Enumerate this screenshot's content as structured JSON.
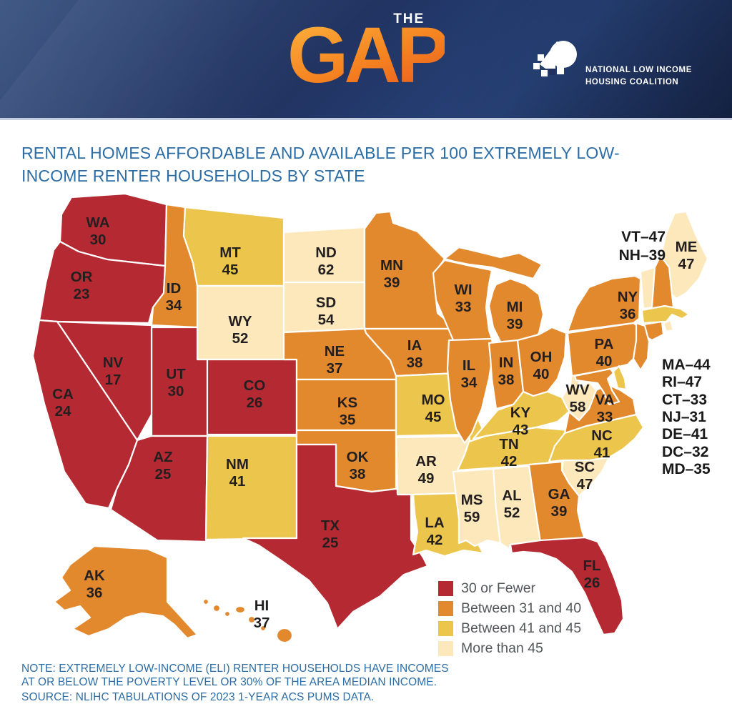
{
  "header": {
    "brand_the": "THE",
    "brand_gap": "GAP",
    "org_line1": "NATIONAL LOW INCOME",
    "org_line2": "HOUSING COALITION"
  },
  "title": "RENTAL HOMES AFFORDABLE AND AVAILABLE PER 100 EXTREMELY LOW-INCOME RENTER HOUSEHOLDS BY STATE",
  "chart_data": {
    "type": "choropleth-map",
    "title": "RENTAL HOMES AFFORDABLE AND AVAILABLE PER 100 EXTREMELY LOW-INCOME RENTER HOUSEHOLDS BY STATE",
    "legend_position": "bottom-center",
    "legend": [
      {
        "label": "30 or Fewer",
        "color": "#b52a32"
      },
      {
        "label": "Between 31 and 40",
        "color": "#e2882d"
      },
      {
        "label": "Between 41 and 45",
        "color": "#ecc54d"
      },
      {
        "label": "More than 45",
        "color": "#fce8ba"
      }
    ],
    "states": [
      {
        "abbr": "WA",
        "value": 30,
        "cat": 0
      },
      {
        "abbr": "OR",
        "value": 23,
        "cat": 0
      },
      {
        "abbr": "CA",
        "value": 24,
        "cat": 0
      },
      {
        "abbr": "NV",
        "value": 17,
        "cat": 0
      },
      {
        "abbr": "ID",
        "value": 34,
        "cat": 1
      },
      {
        "abbr": "UT",
        "value": 30,
        "cat": 0
      },
      {
        "abbr": "AZ",
        "value": 25,
        "cat": 0
      },
      {
        "abbr": "MT",
        "value": 45,
        "cat": 2
      },
      {
        "abbr": "WY",
        "value": 52,
        "cat": 3
      },
      {
        "abbr": "CO",
        "value": 26,
        "cat": 0
      },
      {
        "abbr": "NM",
        "value": 41,
        "cat": 2
      },
      {
        "abbr": "ND",
        "value": 62,
        "cat": 3
      },
      {
        "abbr": "SD",
        "value": 54,
        "cat": 3
      },
      {
        "abbr": "NE",
        "value": 37,
        "cat": 1
      },
      {
        "abbr": "KS",
        "value": 35,
        "cat": 1
      },
      {
        "abbr": "OK",
        "value": 38,
        "cat": 1
      },
      {
        "abbr": "TX",
        "value": 25,
        "cat": 0
      },
      {
        "abbr": "MN",
        "value": 39,
        "cat": 1
      },
      {
        "abbr": "IA",
        "value": 38,
        "cat": 1
      },
      {
        "abbr": "MO",
        "value": 45,
        "cat": 2
      },
      {
        "abbr": "AR",
        "value": 49,
        "cat": 3
      },
      {
        "abbr": "LA",
        "value": 42,
        "cat": 2
      },
      {
        "abbr": "WI",
        "value": 33,
        "cat": 1
      },
      {
        "abbr": "IL",
        "value": 34,
        "cat": 1
      },
      {
        "abbr": "MI",
        "value": 39,
        "cat": 1
      },
      {
        "abbr": "IN",
        "value": 38,
        "cat": 1
      },
      {
        "abbr": "OH",
        "value": 40,
        "cat": 1
      },
      {
        "abbr": "KY",
        "value": 43,
        "cat": 2
      },
      {
        "abbr": "TN",
        "value": 42,
        "cat": 2
      },
      {
        "abbr": "MS",
        "value": 59,
        "cat": 3
      },
      {
        "abbr": "AL",
        "value": 52,
        "cat": 3
      },
      {
        "abbr": "GA",
        "value": 39,
        "cat": 1
      },
      {
        "abbr": "FL",
        "value": 26,
        "cat": 0
      },
      {
        "abbr": "SC",
        "value": 47,
        "cat": 3
      },
      {
        "abbr": "NC",
        "value": 41,
        "cat": 2
      },
      {
        "abbr": "VA",
        "value": 33,
        "cat": 1
      },
      {
        "abbr": "WV",
        "value": 58,
        "cat": 3
      },
      {
        "abbr": "PA",
        "value": 40,
        "cat": 1
      },
      {
        "abbr": "NY",
        "value": 36,
        "cat": 1
      },
      {
        "abbr": "ME",
        "value": 47,
        "cat": 3
      },
      {
        "abbr": "VT",
        "value": 47,
        "cat": 3
      },
      {
        "abbr": "NH",
        "value": 39,
        "cat": 1
      },
      {
        "abbr": "MA",
        "value": 44,
        "cat": 2
      },
      {
        "abbr": "RI",
        "value": 47,
        "cat": 3
      },
      {
        "abbr": "CT",
        "value": 33,
        "cat": 1
      },
      {
        "abbr": "NJ",
        "value": 31,
        "cat": 1
      },
      {
        "abbr": "DE",
        "value": 41,
        "cat": 2
      },
      {
        "abbr": "MD",
        "value": 35,
        "cat": 1
      },
      {
        "abbr": "DC",
        "value": 32,
        "cat": 1
      },
      {
        "abbr": "AK",
        "value": 36,
        "cat": 1
      },
      {
        "abbr": "HI",
        "value": 37,
        "cat": 1
      }
    ],
    "northeast_callouts": [
      "VT–47",
      "NH–39"
    ],
    "east_list": [
      "MA–44",
      "RI–47",
      "CT–33",
      "NJ–31",
      "DE–41",
      "DC–32",
      "MD–35"
    ]
  },
  "notes": {
    "note": "NOTE: EXTREMELY LOW-INCOME (ELI) RENTER HOUSEHOLDS HAVE INCOMES AT OR BELOW THE POVERTY LEVEL OR 30% OF THE AREA MEDIAN INCOME.",
    "source": "SOURCE: NLIHC TABULATIONS OF 2023 1-YEAR ACS PUMS DATA."
  }
}
